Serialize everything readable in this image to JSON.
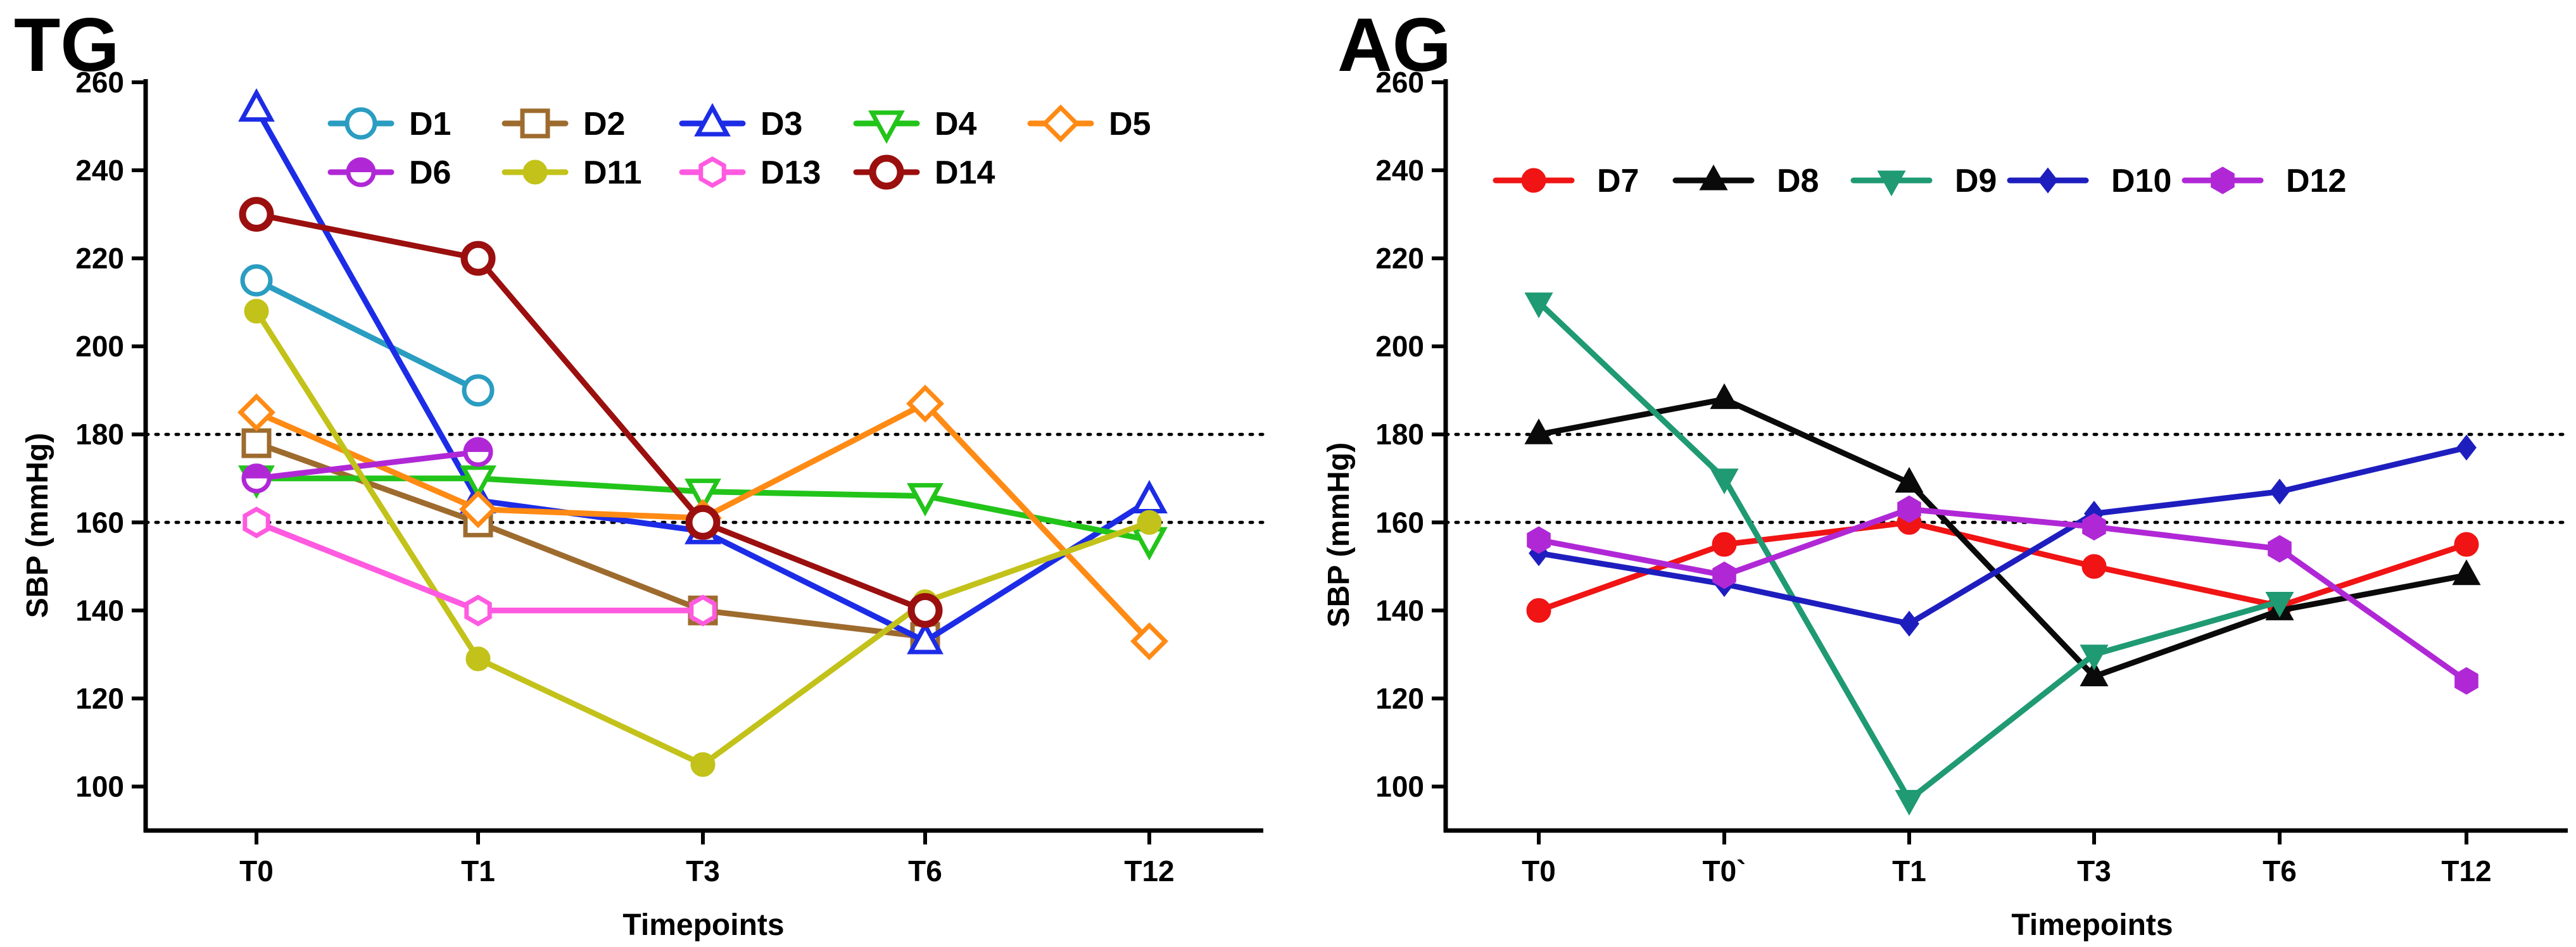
{
  "chart_data": [
    {
      "type": "line",
      "panel_label": "TG",
      "xlabel": "Timepoints",
      "ylabel": "SBP (mmHg)",
      "categories": [
        "T0",
        "T1",
        "T3",
        "T6",
        "T12"
      ],
      "ylim": [
        90,
        260
      ],
      "yticks": [
        100,
        120,
        140,
        160,
        180,
        200,
        220,
        240,
        260
      ],
      "reference_lines": [
        160,
        180
      ],
      "grid": false,
      "legend_position": "top",
      "series": [
        {
          "name": "D1",
          "color": "#2A9DC1",
          "marker": "circle-open",
          "values": [
            215,
            190,
            null,
            null,
            null
          ]
        },
        {
          "name": "D2",
          "color": "#9E6B2E",
          "marker": "square-open",
          "values": [
            178,
            160,
            140,
            134,
            null
          ]
        },
        {
          "name": "D3",
          "color": "#1C2CE6",
          "marker": "triangle-up-open",
          "values": [
            254,
            165,
            158,
            133,
            165
          ]
        },
        {
          "name": "D4",
          "color": "#22C41A",
          "marker": "triangle-down-open",
          "values": [
            170,
            170,
            167,
            166,
            156
          ]
        },
        {
          "name": "D5",
          "color": "#FF8A14",
          "marker": "diamond-open",
          "values": [
            185,
            163,
            161,
            187,
            133
          ]
        },
        {
          "name": "D6",
          "color": "#B028D6",
          "marker": "half-circle",
          "values": [
            170,
            176,
            null,
            null,
            null
          ]
        },
        {
          "name": "D11",
          "color": "#C2C21A",
          "marker": "circle-filled",
          "values": [
            208,
            129,
            105,
            142,
            160
          ]
        },
        {
          "name": "D13",
          "color": "#FF5AE0",
          "marker": "hex-open",
          "values": [
            160,
            140,
            140,
            null,
            null
          ]
        },
        {
          "name": "D14",
          "color": "#9B0F0F",
          "marker": "circle-thick-open",
          "values": [
            230,
            220,
            160,
            140,
            null
          ]
        }
      ]
    },
    {
      "type": "line",
      "panel_label": "AG",
      "xlabel": "Timepoints",
      "ylabel": "SBP (mmHg)",
      "categories": [
        "T0",
        "T0`",
        "T1",
        "T3",
        "T6",
        "T12"
      ],
      "ylim": [
        90,
        260
      ],
      "yticks": [
        100,
        120,
        140,
        160,
        180,
        200,
        220,
        240,
        260
      ],
      "reference_lines": [
        160,
        180
      ],
      "grid": false,
      "legend_position": "top",
      "series": [
        {
          "name": "D7",
          "color": "#F01414",
          "marker": "circle-filled",
          "values": [
            140,
            155,
            160,
            150,
            141,
            155
          ]
        },
        {
          "name": "D8",
          "color": "#0A0A0A",
          "marker": "triangle-up-filled",
          "values": [
            180,
            188,
            169,
            125,
            140,
            148
          ]
        },
        {
          "name": "D9",
          "color": "#1F9A73",
          "marker": "triangle-down-filled",
          "values": [
            210,
            170,
            97,
            130,
            142,
            null
          ]
        },
        {
          "name": "D10",
          "color": "#1E1EBF",
          "marker": "diamond-filled",
          "values": [
            153,
            146,
            137,
            162,
            167,
            177
          ]
        },
        {
          "name": "D12",
          "color": "#B028D6",
          "marker": "hex-filled",
          "values": [
            156,
            148,
            163,
            159,
            154,
            124
          ]
        }
      ]
    }
  ]
}
